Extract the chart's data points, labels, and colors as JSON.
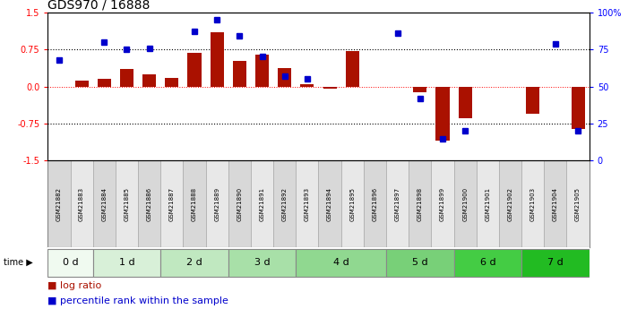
{
  "title": "GDS970 / 16888",
  "samples": [
    "GSM21882",
    "GSM21883",
    "GSM21884",
    "GSM21885",
    "GSM21886",
    "GSM21887",
    "GSM21888",
    "GSM21889",
    "GSM21890",
    "GSM21891",
    "GSM21892",
    "GSM21893",
    "GSM21894",
    "GSM21895",
    "GSM21896",
    "GSM21897",
    "GSM21898",
    "GSM21899",
    "GSM21900",
    "GSM21901",
    "GSM21902",
    "GSM21903",
    "GSM21904",
    "GSM21905"
  ],
  "log_ratio": [
    0.0,
    0.12,
    0.15,
    0.35,
    0.25,
    0.18,
    0.68,
    1.1,
    0.52,
    0.65,
    0.38,
    0.05,
    -0.05,
    0.72,
    0.0,
    0.0,
    -0.12,
    -1.1,
    -0.65,
    0.0,
    0.0,
    -0.55,
    0.0,
    -0.85
  ],
  "percentile_rank": [
    68,
    null,
    80,
    75,
    76,
    null,
    87,
    95,
    84,
    70,
    57,
    55,
    null,
    null,
    null,
    86,
    42,
    15,
    20,
    null,
    null,
    null,
    79,
    20
  ],
  "time_groups": [
    {
      "label": "0 d",
      "start": 0,
      "end": 2,
      "color": "#f0faf0"
    },
    {
      "label": "1 d",
      "start": 2,
      "end": 5,
      "color": "#d8f0d8"
    },
    {
      "label": "2 d",
      "start": 5,
      "end": 8,
      "color": "#c0e8c0"
    },
    {
      "label": "3 d",
      "start": 8,
      "end": 11,
      "color": "#a8e0a8"
    },
    {
      "label": "4 d",
      "start": 11,
      "end": 15,
      "color": "#90d890"
    },
    {
      "label": "5 d",
      "start": 15,
      "end": 18,
      "color": "#78d078"
    },
    {
      "label": "6 d",
      "start": 18,
      "end": 21,
      "color": "#44cc44"
    },
    {
      "label": "7 d",
      "start": 21,
      "end": 24,
      "color": "#22bb22"
    }
  ],
  "ylim": [
    -1.5,
    1.5
  ],
  "yticks_left": [
    -1.5,
    -0.75,
    0.0,
    0.75,
    1.5
  ],
  "yticks_right": [
    0,
    25,
    50,
    75,
    100
  ],
  "hlines_black": [
    -0.75,
    0.75
  ],
  "hline_red": 0.0,
  "bar_color": "#aa1100",
  "dot_color": "#0000cc",
  "title_fontsize": 10,
  "tick_fontsize": 7,
  "legend_fontsize": 8,
  "sample_label_fontsize": 5,
  "time_label_fontsize": 8
}
